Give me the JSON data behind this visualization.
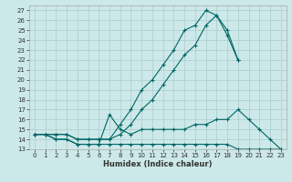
{
  "xlabel": "Humidex (Indice chaleur)",
  "bg_color": "#cce8e8",
  "line_color": "#006666",
  "grid_color": "#aacccc",
  "xlim": [
    -0.5,
    23.5
  ],
  "ylim": [
    13,
    27.5
  ],
  "xticks": [
    0,
    1,
    2,
    3,
    4,
    5,
    6,
    7,
    8,
    9,
    10,
    11,
    12,
    13,
    14,
    15,
    16,
    17,
    18,
    19,
    20,
    21,
    22,
    23
  ],
  "yticks": [
    13,
    14,
    15,
    16,
    17,
    18,
    19,
    20,
    21,
    22,
    23,
    24,
    25,
    26,
    27
  ],
  "lines": [
    {
      "x": [
        0,
        1,
        2,
        3,
        4,
        5,
        6,
        7,
        8,
        9,
        10,
        11,
        12,
        13,
        14,
        15,
        16,
        17,
        18,
        19,
        20,
        21,
        22,
        23
      ],
      "y": [
        14.5,
        14.5,
        14.0,
        14.0,
        13.5,
        13.5,
        13.5,
        13.5,
        13.5,
        13.5,
        13.5,
        13.5,
        13.5,
        13.5,
        13.5,
        13.5,
        13.5,
        13.5,
        13.5,
        13.0,
        13.0,
        13.0,
        13.0,
        13.0
      ]
    },
    {
      "x": [
        0,
        1,
        2,
        3,
        4,
        5,
        6,
        7,
        8,
        9,
        10,
        11,
        12,
        13,
        14,
        15,
        16,
        17,
        18,
        19,
        20,
        21,
        22,
        23
      ],
      "y": [
        14.5,
        14.5,
        14.0,
        14.0,
        13.5,
        13.5,
        13.5,
        16.5,
        15.0,
        14.5,
        15.0,
        15.0,
        15.0,
        15.0,
        15.0,
        15.5,
        15.5,
        16.0,
        16.0,
        17.0,
        16.0,
        15.0,
        14.0,
        13.0
      ]
    },
    {
      "x": [
        0,
        1,
        2,
        3,
        4,
        5,
        6,
        7,
        8,
        9,
        10,
        11,
        12,
        13,
        14,
        15,
        16,
        17,
        18,
        19
      ],
      "y": [
        14.5,
        14.5,
        14.5,
        14.5,
        14.0,
        14.0,
        14.0,
        14.0,
        15.5,
        17.0,
        19.0,
        20.0,
        21.5,
        23.0,
        25.0,
        25.5,
        27.0,
        26.5,
        24.5,
        22.0
      ]
    },
    {
      "x": [
        0,
        1,
        2,
        3,
        4,
        5,
        6,
        7,
        8,
        9,
        10,
        11,
        12,
        13,
        14,
        15,
        16,
        17,
        18,
        19,
        20,
        21,
        22,
        23
      ],
      "y": [
        14.5,
        14.5,
        14.5,
        14.5,
        14.0,
        14.0,
        14.0,
        14.0,
        14.5,
        15.5,
        17.0,
        18.0,
        19.5,
        21.0,
        22.5,
        23.5,
        25.5,
        26.5,
        25.0,
        22.0,
        null,
        null,
        null,
        null
      ]
    }
  ]
}
